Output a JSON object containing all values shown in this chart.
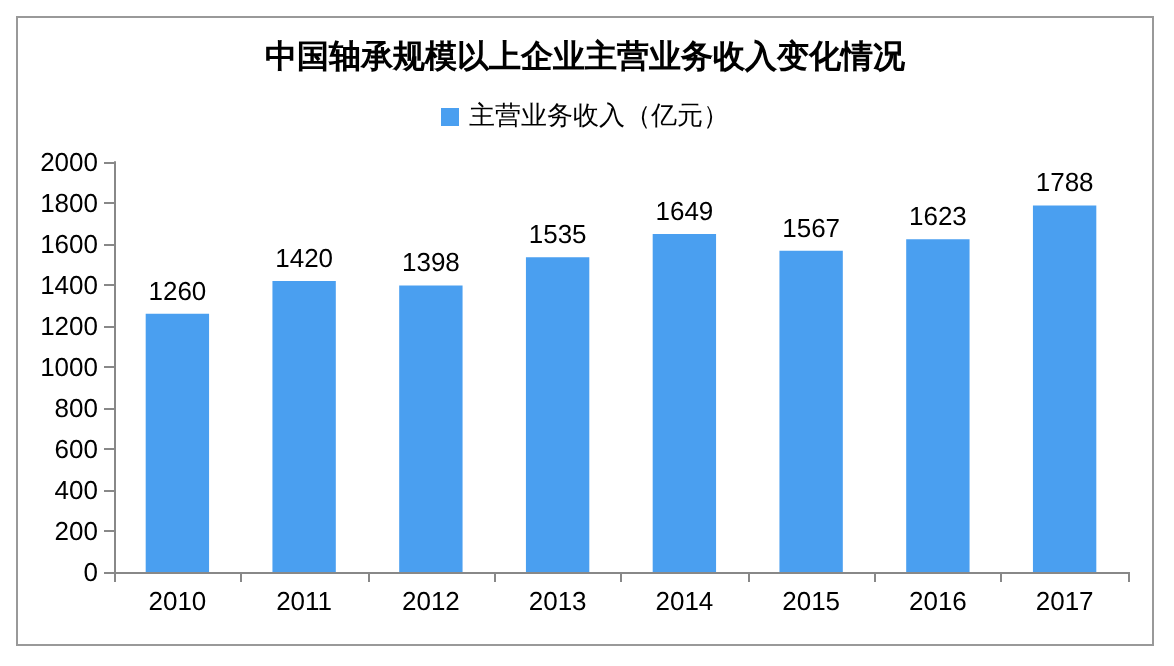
{
  "chart_data": {
    "type": "bar",
    "title": "中国轴承规模以上企业主营业务收入变化情况",
    "categories": [
      "2010",
      "2011",
      "2012",
      "2013",
      "2014",
      "2015",
      "2016",
      "2017"
    ],
    "series": [
      {
        "name": "主营业务收入（亿元）",
        "color": "#4a9ff0",
        "values": [
          1260,
          1420,
          1398,
          1535,
          1649,
          1567,
          1623,
          1788
        ]
      }
    ],
    "ylim": [
      0,
      2000
    ],
    "yticks": [
      0,
      200,
      400,
      600,
      800,
      1000,
      1200,
      1400,
      1600,
      1800,
      2000
    ],
    "grid": false,
    "legend": "top",
    "data_labels": true
  }
}
